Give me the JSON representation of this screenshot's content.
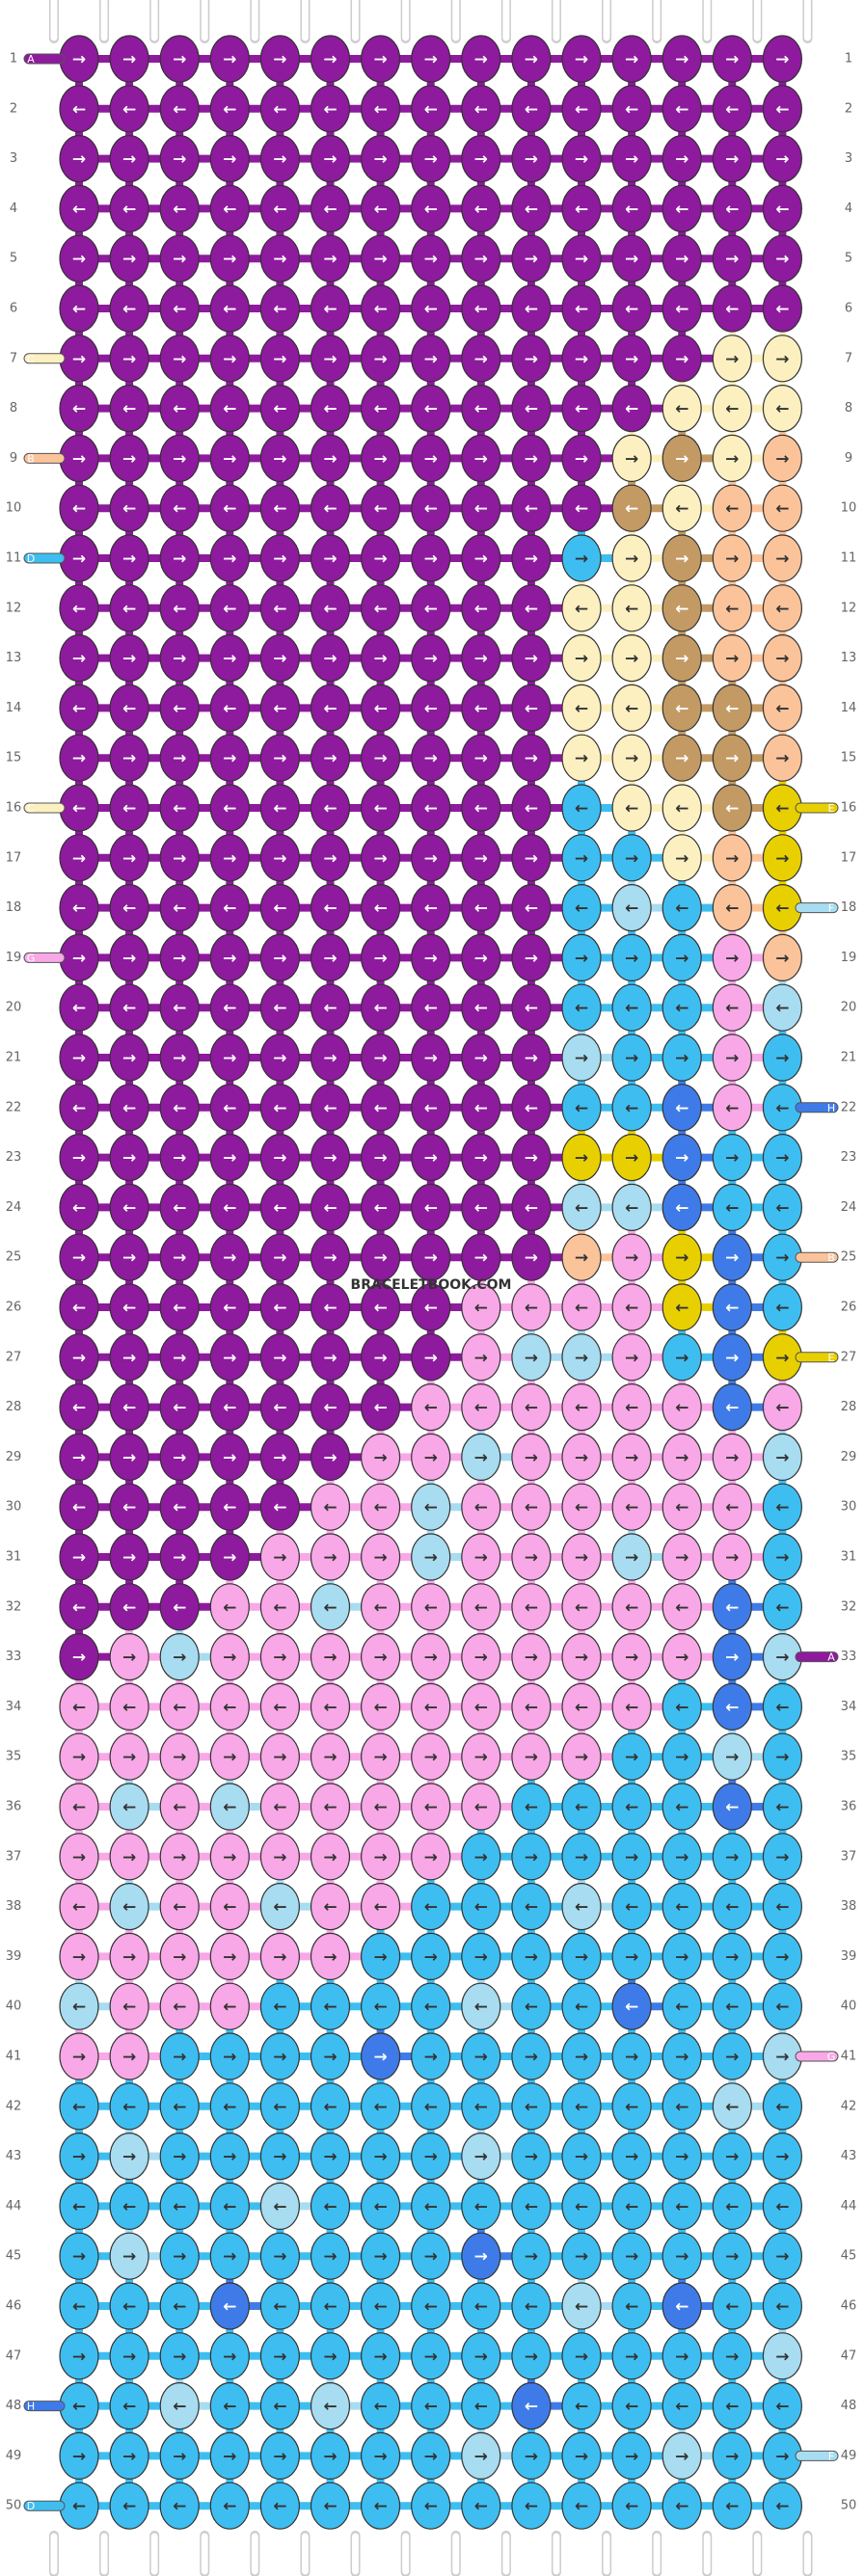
{
  "palette": {
    "P": "#8e1a9e",
    "W": "#fdf0c0",
    "B": "#fbc39a",
    "T": "#c39a63",
    "L": "#a8dcf0",
    "S": "#3ebef0",
    "K": "#f8a8e6",
    "Y": "#e8d000",
    "D": "#3f7be8"
  },
  "watermark": "BRACELETBOOK.COM",
  "row_numbers": [
    1,
    2,
    3,
    4,
    5,
    6,
    7,
    8,
    9,
    10,
    11,
    12,
    13,
    14,
    15,
    16,
    17,
    18,
    19,
    20,
    21,
    22,
    23,
    24,
    25,
    26,
    27,
    28,
    29,
    30,
    31,
    32,
    33,
    34,
    35,
    36,
    37,
    38,
    39,
    40,
    41,
    42,
    43,
    44,
    45,
    46,
    47,
    48,
    49,
    50
  ],
  "left_strings": [
    {
      "row": 1,
      "label": "A",
      "color": "P"
    },
    {
      "row": 7,
      "label": "C",
      "color": "W"
    },
    {
      "row": 9,
      "label": "B",
      "color": "B"
    },
    {
      "row": 11,
      "label": "D",
      "color": "S"
    },
    {
      "row": 16,
      "label": "C",
      "color": "W"
    },
    {
      "row": 19,
      "label": "G",
      "color": "K"
    },
    {
      "row": 48,
      "label": "H",
      "color": "D"
    },
    {
      "row": 50,
      "label": "D",
      "color": "S"
    }
  ],
  "right_strings": [
    {
      "row": 16,
      "label": "E",
      "color": "Y"
    },
    {
      "row": 18,
      "label": "F",
      "color": "L"
    },
    {
      "row": 22,
      "label": "H",
      "color": "D"
    },
    {
      "row": 25,
      "label": "B",
      "color": "B"
    },
    {
      "row": 27,
      "label": "E",
      "color": "Y"
    },
    {
      "row": 33,
      "label": "A",
      "color": "P"
    },
    {
      "row": 41,
      "label": "G",
      "color": "K"
    },
    {
      "row": 49,
      "label": "F",
      "color": "L"
    }
  ],
  "rows": [
    {
      "colors": "PPPPPPPPPPPPPPP",
      "arrows": "→→→→→→→→→→→→→→→"
    },
    {
      "colors": "PPPPPPPPPPPPPPP",
      "arrows": "←←←←←←←←←←←←←←←"
    },
    {
      "colors": "PPPPPPPPPPPPPPP",
      "arrows": "→→→→→→→→→→→→→→→"
    },
    {
      "colors": "PPPPPPPPPPPPPPP",
      "arrows": "←←←←←←←←←←←←←←←"
    },
    {
      "colors": "PPPPPPPPPPPPPPP",
      "arrows": "→→→→→→→→→→→→→→→"
    },
    {
      "colors": "PPPPPPPPPPPPPPP",
      "arrows": "←←←←←←←←←←←←←←←"
    },
    {
      "colors": "PPPPPPPPPPPPPWW",
      "arrows": "→→→→→→→→→→→→→→→"
    },
    {
      "colors": "PPPPPPPPPPPPWWW",
      "arrows": "←←←←←←←←←←←←←←←"
    },
    {
      "colors": "PPPPPPPPPPPWTWB",
      "arrows": "→→→→→→→→→→→→→→→"
    },
    {
      "colors": "PPPPPPPPPPPTWBB",
      "arrows": "←←←←←←←←←←←←←←←"
    },
    {
      "colors": "PPPPPPPPPPSWTBB",
      "arrows": "→→→→→→→→→→→→→→→"
    },
    {
      "colors": "PPPPPPPPPPWWTBB",
      "arrows": "←←←←←←←←←←←←←←←"
    },
    {
      "colors": "PPPPPPPPPPWWTBB",
      "arrows": "→→→→→→→→→→→→→→→"
    },
    {
      "colors": "PPPPPPPPPPWWTTB",
      "arrows": "←←←←←←←←←←←←←←←"
    },
    {
      "colors": "PPPPPPPPPPWWTTB",
      "arrows": "→→→→→→→→→→→→→→→"
    },
    {
      "colors": "PPPPPPPPPPSWWTY",
      "arrows": "←←←←←←←←←←←←←←←"
    },
    {
      "colors": "PPPPPPPPPPSSWBY",
      "arrows": "→→→→→→→→→→→→→→→"
    },
    {
      "colors": "PPPPPPPPPPSLSBY",
      "arrows": "←←←←←←←←←←←←←←←"
    },
    {
      "colors": "PPPPPPPPPPSSSKB",
      "arrows": "→→→→→→→→→→→→→→→"
    },
    {
      "colors": "PPPPPPPPPPSSSKL",
      "arrows": "←←←←←←←←←←←←←←←"
    },
    {
      "colors": "PPPPPPPPPPLSSKS",
      "arrows": "→→→→→→→→→→→→→→→"
    },
    {
      "colors": "PPPPPPPPPPSSDKS",
      "arrows": "←←←←←←←←←←←←←←←"
    },
    {
      "colors": "PPPPPPPPPPYYDSS",
      "arrows": "→→→→→→→→→→→→→→→"
    },
    {
      "colors": "PPPPPPPPPPLLDSS",
      "arrows": "←←←←←←←←←←←←←←←"
    },
    {
      "colors": "PPPPPPPPPPBKYDS",
      "arrows": "→→→→→→→→→→→→→→→"
    },
    {
      "colors": "PPPPPPPPKKKKYDS",
      "arrows": "←←←←←←←←←←←←←←←"
    },
    {
      "colors": "PPPPPPPPKLLKSDY",
      "arrows": "→→→→→→→→→→→→→→→"
    },
    {
      "colors": "PPPPPPPKKKKKKDK",
      "arrows": "←←←←←←←←←←←←←←←"
    },
    {
      "colors": "PPPPPPKKLKKKKKL",
      "arrows": "→→→→→→→→→→→→→→→"
    },
    {
      "colors": "PPPPPKKLKKKKKKS",
      "arrows": "←←←←←←←←←←←←←←←"
    },
    {
      "colors": "PPPPKKKLKKKLKKS",
      "arrows": "→→→→→→→→→→→→→→→"
    },
    {
      "colors": "PPPKKLKKKKKKKDS",
      "arrows": "←←←←←←←←←←←←←←←"
    },
    {
      "colors": "PKLKKKKKKKKKKDL",
      "arrows": "→→→→→→→→→→→→→→→"
    },
    {
      "colors": "KKKKKKKKKKKKSDS",
      "arrows": "←←←←←←←←←←←←←←←"
    },
    {
      "colors": "KKKKKKKKKKKSSLS",
      "arrows": "→→→→→→→→→→→→→→→"
    },
    {
      "colors": "KLKLKKKKKSSSSDS",
      "arrows": "←←←←←←←←←←←←←←←"
    },
    {
      "colors": "KKKKKKKKSSSSSSS",
      "arrows": "→→→→→→→→→→→→→→→"
    },
    {
      "colors": "KLKKLKKSSSLSSSS",
      "arrows": "←←←←←←←←←←←←←←←"
    },
    {
      "colors": "KKKKKKSSSSSSSSS",
      "arrows": "→→→→→→→→→→→→→→→"
    },
    {
      "colors": "LKKKSSSSLSSDSSS",
      "arrows": "←←←←←←←←←←←←←←←"
    },
    {
      "colors": "KKSSSSDSSSSSSSL",
      "arrows": "→→→→→→→→→→→→→→→"
    },
    {
      "colors": "SSSSSSSSSSSSSLS",
      "arrows": "←←←←←←←←←←←←←←←"
    },
    {
      "colors": "SLSSSSSSLSSSSSS",
      "arrows": "→→→→→→→→→→→→→→→"
    },
    {
      "colors": "SSSSLSSSSSSSSSS",
      "arrows": "←←←←←←←←←←←←←←←"
    },
    {
      "colors": "SLSSSSSSDSSSSSS",
      "arrows": "→→→→→→→→→→→→→→→"
    },
    {
      "colors": "SSSDSSSSSSLSDSS",
      "arrows": "←←←←←←←←←←←←←←←"
    },
    {
      "colors": "SSSSSSSSSSSSSSL",
      "arrows": "→→→→→→→→→→→→→→→"
    },
    {
      "colors": "SSLSSLSSSDSSSSS",
      "arrows": "←←←←←←←←←←←←←←←"
    },
    {
      "colors": "SSSSSSSSLSSSLSS",
      "arrows": "→→→→→→→→→→→→→→→"
    },
    {
      "colors": "SSSSSSSSSSSSSSS",
      "arrows": "←←←←←←←←←←←←←←←"
    }
  ]
}
